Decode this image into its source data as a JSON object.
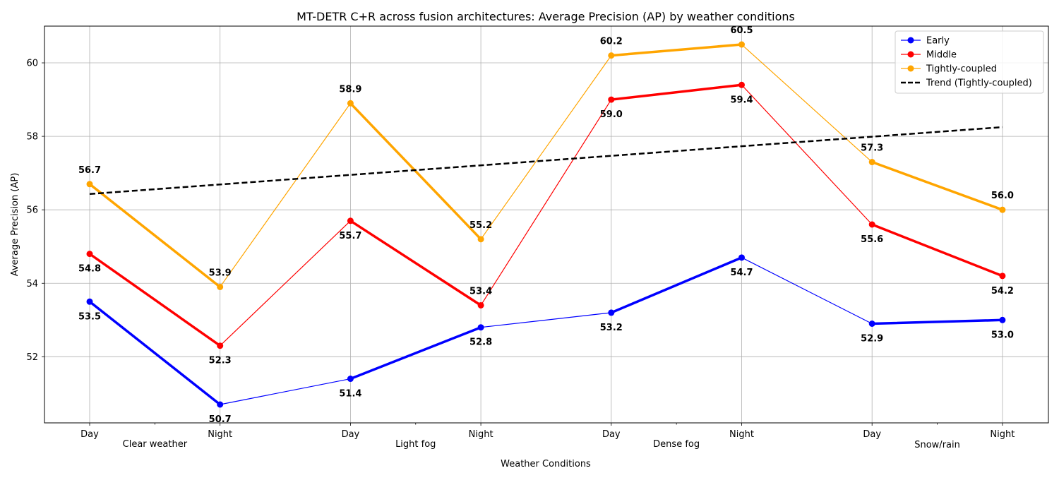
{
  "chart_data": {
    "type": "line",
    "title": "MT-DETR C+R across fusion architectures: Average Precision (AP) by weather conditions",
    "xlabel": "Weather Conditions",
    "ylabel": "Average Precision (AP)",
    "categories": [
      "Day",
      "Night",
      "Day",
      "Night",
      "Day",
      "Night",
      "Day",
      "Night"
    ],
    "groups": [
      "Clear weather",
      "Light fog",
      "Dense fog",
      "Snow/rain"
    ],
    "ylim": [
      50.2,
      61.0
    ],
    "yticks": [
      52,
      54,
      56,
      58,
      60
    ],
    "grid": true,
    "legend_position": "top-right",
    "series": [
      {
        "name": "Early",
        "color": "#0000ff",
        "values": [
          53.5,
          50.7,
          51.4,
          52.8,
          53.2,
          54.7,
          52.9,
          53.0
        ],
        "labels": [
          "53.5",
          "50.7",
          "51.4",
          "52.8",
          "53.2",
          "54.7",
          "52.9",
          "53.0"
        ]
      },
      {
        "name": "Middle",
        "color": "#ff0000",
        "values": [
          54.8,
          52.3,
          55.7,
          53.4,
          59.0,
          59.4,
          55.6,
          54.2
        ],
        "labels": [
          "54.8",
          "52.3",
          "55.7",
          "53.4",
          "59.0",
          "59.4",
          "55.6",
          "54.2"
        ]
      },
      {
        "name": "Tightly-coupled",
        "color": "#ffa500",
        "values": [
          56.7,
          53.9,
          58.9,
          55.2,
          60.2,
          60.5,
          57.3,
          56.0
        ],
        "labels": [
          "56.7",
          "53.9",
          "58.9",
          "55.2",
          "60.2",
          "60.5",
          "57.3",
          "56.0"
        ]
      }
    ],
    "trend": {
      "name": "Trend (Tightly-coupled)",
      "color": "#000000",
      "start": 56.43,
      "end": 58.25
    }
  }
}
